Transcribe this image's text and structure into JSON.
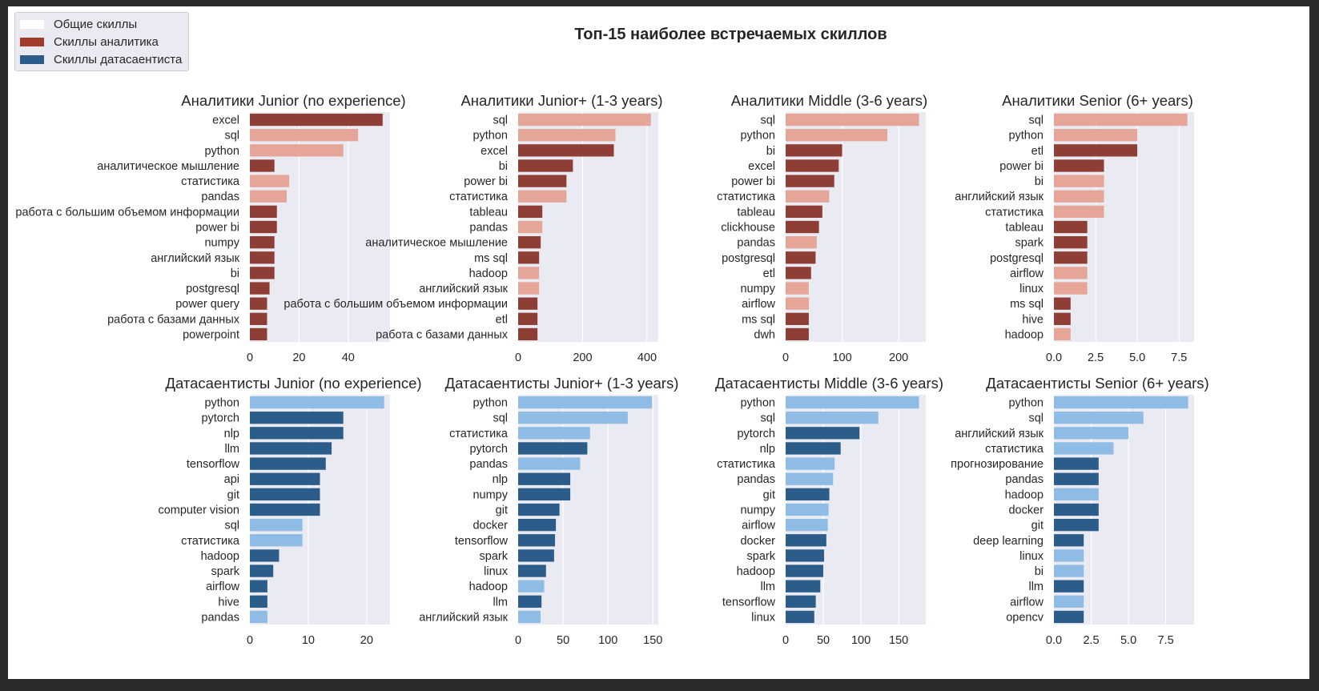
{
  "title": "Топ-15 наиболее встречаемых скиллов",
  "colors": {
    "common": "#ffffff",
    "analyst": "#a23b2a",
    "analyst_dark": "#8f3e35",
    "analyst_light": "#e5a597",
    "ds_dark": "#2c5c89",
    "ds_light": "#8ebce4",
    "panel_bg": "#eaeaf2"
  },
  "legend": {
    "items": [
      {
        "label": "Общие скиллы",
        "color": "#ffffff"
      },
      {
        "label": "Скиллы аналитика",
        "color": "#a23b2a"
      },
      {
        "label": "Скиллы датасаентиста",
        "color": "#2c5c89"
      }
    ]
  },
  "chart_data": [
    {
      "type": "bar",
      "orientation": "horizontal",
      "title": "Аналитики Junior (no experience)",
      "xlim": [
        0,
        57
      ],
      "xticks": [
        0,
        20,
        40
      ],
      "categories": [
        "excel",
        "sql",
        "python",
        "аналитическое мышление",
        "статистика",
        "pandas",
        "работа с большим объемом информации",
        "power bi",
        "numpy",
        "английский язык",
        "bi",
        "postgresql",
        "power query",
        "работа с базами данных",
        "powerpoint"
      ],
      "values": [
        54,
        44,
        38,
        10,
        16,
        15,
        11,
        11,
        10,
        10,
        10,
        8,
        7,
        7,
        7
      ],
      "shade": [
        "dark",
        "light",
        "light",
        "dark",
        "light",
        "light",
        "dark",
        "dark",
        "dark",
        "dark",
        "dark",
        "dark",
        "dark",
        "dark",
        "dark"
      ]
    },
    {
      "type": "bar",
      "orientation": "horizontal",
      "title": "Аналитики Junior+ (1-3 years)",
      "xlim": [
        0,
        435
      ],
      "xticks": [
        0,
        200,
        400
      ],
      "categories": [
        "sql",
        "python",
        "excel",
        "bi",
        "power bi",
        "статистика",
        "tableau",
        "pandas",
        "аналитическое мышление",
        "ms sql",
        "hadoop",
        "английский язык",
        "работа с большим объемом информации",
        "etl",
        "работа с базами данных"
      ],
      "values": [
        412,
        302,
        297,
        170,
        150,
        150,
        75,
        75,
        70,
        65,
        65,
        65,
        60,
        60,
        60
      ],
      "shade": [
        "light",
        "light",
        "dark",
        "dark",
        "dark",
        "light",
        "dark",
        "light",
        "dark",
        "dark",
        "light",
        "light",
        "dark",
        "dark",
        "dark"
      ]
    },
    {
      "type": "bar",
      "orientation": "horizontal",
      "title": "Аналитики Middle (3-6 years)",
      "xlim": [
        0,
        248
      ],
      "xticks": [
        0,
        100,
        200
      ],
      "categories": [
        "sql",
        "python",
        "bi",
        "excel",
        "power bi",
        "статистика",
        "tableau",
        "clickhouse",
        "pandas",
        "postgresql",
        "etl",
        "numpy",
        "airflow",
        "ms sql",
        "dwh"
      ],
      "values": [
        236,
        180,
        100,
        94,
        86,
        77,
        65,
        59,
        55,
        53,
        45,
        41,
        41,
        41,
        41
      ],
      "shade": [
        "light",
        "light",
        "dark",
        "dark",
        "dark",
        "light",
        "dark",
        "dark",
        "light",
        "dark",
        "dark",
        "light",
        "light",
        "dark",
        "dark"
      ]
    },
    {
      "type": "bar",
      "orientation": "horizontal",
      "title": "Аналитики Senior (6+ years)",
      "xlim": [
        0,
        8.4
      ],
      "xticks": [
        0.0,
        2.5,
        5.0,
        7.5
      ],
      "categories": [
        "sql",
        "python",
        "etl",
        "power bi",
        "bi",
        "английский язык",
        "статистика",
        "tableau",
        "spark",
        "postgresql",
        "airflow",
        "linux",
        "ms sql",
        "hive",
        "hadoop"
      ],
      "values": [
        8,
        5,
        5,
        3,
        3,
        3,
        3,
        2,
        2,
        2,
        2,
        2,
        1,
        1,
        1
      ],
      "shade": [
        "light",
        "light",
        "dark",
        "dark",
        "light",
        "light",
        "light",
        "dark",
        "dark",
        "dark",
        "light",
        "light",
        "dark",
        "dark",
        "light"
      ]
    },
    {
      "type": "bar",
      "orientation": "horizontal",
      "title": "Датасаентисты Junior (no experience)",
      "xlim": [
        0,
        24
      ],
      "xticks": [
        0,
        10,
        20
      ],
      "categories": [
        "python",
        "pytorch",
        "nlp",
        "llm",
        "tensorflow",
        "api",
        "git",
        "computer vision",
        "sql",
        "статистика",
        "hadoop",
        "spark",
        "airflow",
        "hive",
        "pandas"
      ],
      "values": [
        23,
        16,
        16,
        14,
        13,
        12,
        12,
        12,
        9,
        9,
        5,
        4,
        3,
        3,
        3
      ],
      "shade": [
        "light",
        "dark",
        "dark",
        "dark",
        "dark",
        "dark",
        "dark",
        "dark",
        "light",
        "light",
        "dark",
        "dark",
        "dark",
        "dark",
        "light"
      ]
    },
    {
      "type": "bar",
      "orientation": "horizontal",
      "title": "Датасаентисты Junior+ (1-3 years)",
      "xlim": [
        0,
        156
      ],
      "xticks": [
        0,
        50,
        100,
        150
      ],
      "categories": [
        "python",
        "sql",
        "статистика",
        "pytorch",
        "pandas",
        "nlp",
        "numpy",
        "git",
        "docker",
        "tensorflow",
        "spark",
        "linux",
        "hadoop",
        "llm",
        "английский язык"
      ],
      "values": [
        149,
        122,
        80,
        77,
        69,
        58,
        58,
        46,
        42,
        41,
        40,
        31,
        29,
        26,
        25
      ],
      "shade": [
        "light",
        "light",
        "light",
        "dark",
        "light",
        "dark",
        "dark",
        "dark",
        "dark",
        "dark",
        "dark",
        "dark",
        "light",
        "dark",
        "light"
      ]
    },
    {
      "type": "bar",
      "orientation": "horizontal",
      "title": "Датасаентисты Middle (3-6 years)",
      "xlim": [
        0,
        186
      ],
      "xticks": [
        0,
        50,
        100,
        150
      ],
      "categories": [
        "python",
        "sql",
        "pytorch",
        "nlp",
        "статистика",
        "pandas",
        "git",
        "numpy",
        "airflow",
        "docker",
        "spark",
        "hadoop",
        "llm",
        "tensorflow",
        "linux"
      ],
      "values": [
        177,
        123,
        98,
        73,
        65,
        63,
        58,
        57,
        56,
        54,
        51,
        50,
        46,
        40,
        38
      ],
      "shade": [
        "light",
        "light",
        "dark",
        "dark",
        "light",
        "light",
        "dark",
        "light",
        "light",
        "dark",
        "dark",
        "dark",
        "dark",
        "dark",
        "dark"
      ]
    },
    {
      "type": "bar",
      "orientation": "horizontal",
      "title": "Датасаентисты Senior (6+ years)",
      "xlim": [
        0,
        9.4
      ],
      "xticks": [
        0.0,
        2.5,
        5.0,
        7.5
      ],
      "categories": [
        "python",
        "sql",
        "английский язык",
        "статистика",
        "прогнозирование",
        "pandas",
        "hadoop",
        "docker",
        "git",
        "deep learning",
        "linux",
        "bi",
        "llm",
        "airflow",
        "opencv"
      ],
      "values": [
        9,
        6,
        5,
        4,
        3,
        3,
        3,
        3,
        3,
        2,
        2,
        2,
        2,
        2,
        2
      ],
      "shade": [
        "light",
        "light",
        "light",
        "light",
        "dark",
        "dark",
        "light",
        "dark",
        "dark",
        "dark",
        "light",
        "light",
        "dark",
        "light",
        "dark"
      ]
    }
  ]
}
